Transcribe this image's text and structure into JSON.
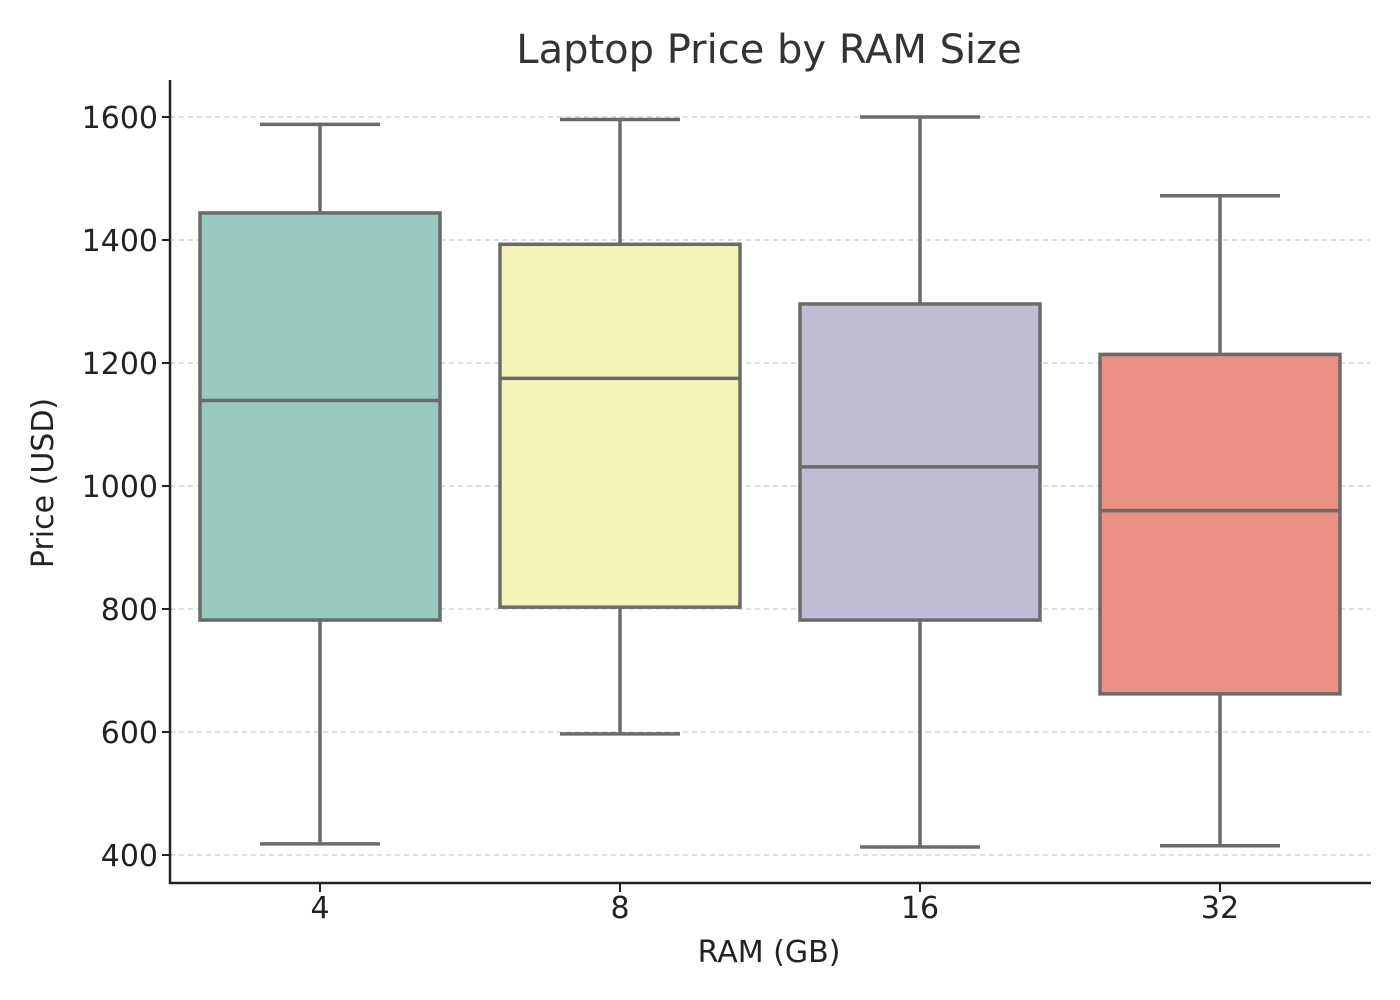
{
  "chart_data": {
    "type": "box",
    "title": "Laptop Price by RAM Size",
    "xlabel": "RAM (GB)",
    "ylabel": "Price (USD)",
    "ylim": [
      355,
      1660
    ],
    "y_ticks": [
      400,
      600,
      800,
      1000,
      1200,
      1400,
      1600
    ],
    "grid": "horizontal dashed",
    "categories": [
      "4",
      "8",
      "16",
      "32"
    ],
    "boxes": [
      {
        "category": "4",
        "min": 418,
        "q1": 782,
        "median": 1139,
        "q3": 1444,
        "max": 1588,
        "color": "#97c9bf"
      },
      {
        "category": "8",
        "min": 597,
        "q1": 803,
        "median": 1175,
        "q3": 1393,
        "max": 1596,
        "color": "#f5f5b9"
      },
      {
        "category": "16",
        "min": 413,
        "q1": 782,
        "median": 1031,
        "q3": 1296,
        "max": 1600,
        "color": "#c0bcd4"
      },
      {
        "category": "32",
        "min": 415,
        "q1": 662,
        "median": 960,
        "q3": 1214,
        "max": 1472,
        "color": "#e98f83"
      }
    ]
  }
}
